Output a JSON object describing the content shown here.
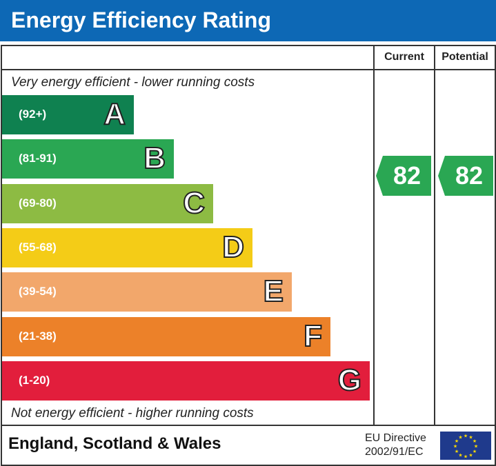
{
  "title": "Energy Efficiency Rating",
  "columns": {
    "current": "Current",
    "potential": "Potential"
  },
  "top_note": "Very energy efficient - lower running costs",
  "bottom_note": "Not energy efficient - higher running costs",
  "footer": {
    "region": "England, Scotland & Wales",
    "directive_line1": "EU Directive",
    "directive_line2": "2002/91/EC"
  },
  "chart_data": {
    "type": "bar",
    "bands": [
      {
        "letter": "A",
        "range": "(92+)",
        "color": "#0f8150"
      },
      {
        "letter": "B",
        "range": "(81-91)",
        "color": "#2aa753"
      },
      {
        "letter": "C",
        "range": "(69-80)",
        "color": "#8dbb43"
      },
      {
        "letter": "D",
        "range": "(55-68)",
        "color": "#f4cc17"
      },
      {
        "letter": "E",
        "range": "(39-54)",
        "color": "#f2a76b"
      },
      {
        "letter": "F",
        "range": "(21-38)",
        "color": "#ec8129"
      },
      {
        "letter": "G",
        "range": "(1-20)",
        "color": "#e21e3c"
      }
    ],
    "current": {
      "value": "82",
      "band": "B",
      "color": "#2aa753"
    },
    "potential": {
      "value": "82",
      "band": "B",
      "color": "#2aa753"
    }
  }
}
